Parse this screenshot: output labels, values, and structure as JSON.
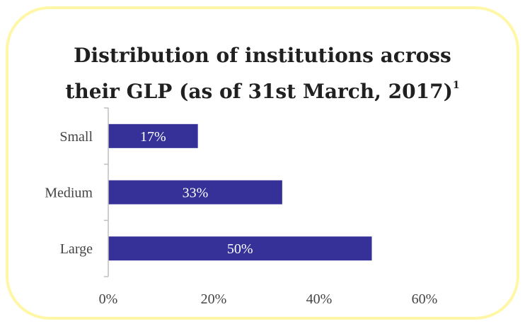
{
  "title": {
    "main": "Distribution of institutions across",
    "line2": "their GLP (as of 31st March, 2017)",
    "footnote_marker": "1"
  },
  "colors": {
    "bar": "#353199",
    "border": "#fff7a6",
    "axis": "#bfbfbf"
  },
  "chart_data": {
    "type": "bar",
    "orientation": "horizontal",
    "categories": [
      "Small",
      "Medium",
      "Large"
    ],
    "values": [
      17,
      33,
      50
    ],
    "data_labels": [
      "17%",
      "33%",
      "50%"
    ],
    "x_ticks": [
      "0%",
      "20%",
      "40%",
      "60%"
    ],
    "xlim": [
      0,
      60
    ],
    "grid": false,
    "legend": "none"
  }
}
